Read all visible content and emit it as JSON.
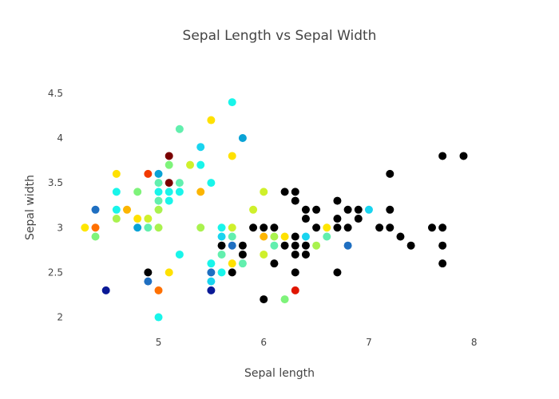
{
  "chart_data": {
    "type": "scatter",
    "title": "Sepal Length vs Sepal Width",
    "xlabel": "Sepal length",
    "ylabel": "Sepal width",
    "xlim": [
      4.1,
      8.2
    ],
    "ylim": [
      1.8,
      4.65
    ],
    "xticks": [
      "5",
      "6",
      "7",
      "8"
    ],
    "yticks": [
      "2",
      "2.5",
      "3",
      "3.5",
      "4",
      "4.5"
    ],
    "grid": false,
    "legend": "none",
    "points": [
      {
        "x": 4.3,
        "y": 3.0,
        "c": "#ffe600"
      },
      {
        "x": 4.4,
        "y": 3.2,
        "c": "#1f6fc1"
      },
      {
        "x": 4.4,
        "y": 3.0,
        "c": "#ff7000"
      },
      {
        "x": 4.4,
        "y": 2.9,
        "c": "#7ef37a"
      },
      {
        "x": 4.5,
        "y": 2.3,
        "c": "#0a1996"
      },
      {
        "x": 4.6,
        "y": 3.6,
        "c": "#ffe100"
      },
      {
        "x": 4.6,
        "y": 3.4,
        "c": "#19f5ea"
      },
      {
        "x": 4.6,
        "y": 3.2,
        "c": "#19f5ea"
      },
      {
        "x": 4.6,
        "y": 3.1,
        "c": "#a9f24e"
      },
      {
        "x": 4.7,
        "y": 3.2,
        "c": "#fcb500"
      },
      {
        "x": 4.8,
        "y": 3.4,
        "c": "#7ef37a"
      },
      {
        "x": 4.8,
        "y": 3.1,
        "c": "#ffe100"
      },
      {
        "x": 4.8,
        "y": 3.0,
        "c": "#0aa3d6"
      },
      {
        "x": 4.9,
        "y": 3.6,
        "c": "#f23a00"
      },
      {
        "x": 4.9,
        "y": 3.1,
        "c": "#cff02b"
      },
      {
        "x": 4.9,
        "y": 3.0,
        "c": "#62efae"
      },
      {
        "x": 4.9,
        "y": 2.5,
        "c": "#000000"
      },
      {
        "x": 4.9,
        "y": 2.4,
        "c": "#1f6fc1"
      },
      {
        "x": 5.0,
        "y": 3.6,
        "c": "#0aa3d6"
      },
      {
        "x": 5.0,
        "y": 3.5,
        "c": "#62efae"
      },
      {
        "x": 5.0,
        "y": 3.4,
        "c": "#19f5ea"
      },
      {
        "x": 5.0,
        "y": 3.3,
        "c": "#62efae"
      },
      {
        "x": 5.0,
        "y": 3.2,
        "c": "#a9f24e"
      },
      {
        "x": 5.0,
        "y": 3.0,
        "c": "#a9f24e"
      },
      {
        "x": 5.0,
        "y": 2.3,
        "c": "#ff7000"
      },
      {
        "x": 5.0,
        "y": 2.0,
        "c": "#19f5ea"
      },
      {
        "x": 5.1,
        "y": 3.8,
        "c": "#7a0000"
      },
      {
        "x": 5.1,
        "y": 3.7,
        "c": "#7ef37a"
      },
      {
        "x": 5.1,
        "y": 3.5,
        "c": "#7a0000"
      },
      {
        "x": 5.1,
        "y": 3.4,
        "c": "#19f5ea"
      },
      {
        "x": 5.1,
        "y": 3.3,
        "c": "#19f5ea"
      },
      {
        "x": 5.1,
        "y": 2.5,
        "c": "#ffe100"
      },
      {
        "x": 5.2,
        "y": 4.1,
        "c": "#62efae"
      },
      {
        "x": 5.2,
        "y": 3.5,
        "c": "#62efae"
      },
      {
        "x": 5.2,
        "y": 3.4,
        "c": "#19f5ea"
      },
      {
        "x": 5.2,
        "y": 2.7,
        "c": "#19f5ea"
      },
      {
        "x": 5.3,
        "y": 3.7,
        "c": "#cff02b"
      },
      {
        "x": 5.4,
        "y": 3.9,
        "c": "#19d4ef"
      },
      {
        "x": 5.4,
        "y": 3.7,
        "c": "#19f5ea"
      },
      {
        "x": 5.4,
        "y": 3.4,
        "c": "#fcb500"
      },
      {
        "x": 5.4,
        "y": 3.0,
        "c": "#a9f24e"
      },
      {
        "x": 5.5,
        "y": 4.2,
        "c": "#ffe100"
      },
      {
        "x": 5.5,
        "y": 3.5,
        "c": "#19f5ea"
      },
      {
        "x": 5.5,
        "y": 2.6,
        "c": "#19f5ea"
      },
      {
        "x": 5.5,
        "y": 2.5,
        "c": "#1f6fc1"
      },
      {
        "x": 5.5,
        "y": 2.4,
        "c": "#19d4ef"
      },
      {
        "x": 5.5,
        "y": 2.3,
        "c": "#0a1996"
      },
      {
        "x": 5.6,
        "y": 3.0,
        "c": "#19f5ea"
      },
      {
        "x": 5.6,
        "y": 2.9,
        "c": "#19d4ef"
      },
      {
        "x": 5.6,
        "y": 2.8,
        "c": "#000000"
      },
      {
        "x": 5.6,
        "y": 2.7,
        "c": "#62efae"
      },
      {
        "x": 5.6,
        "y": 2.5,
        "c": "#19f5ea"
      },
      {
        "x": 5.7,
        "y": 4.4,
        "c": "#19f5ea"
      },
      {
        "x": 5.7,
        "y": 3.8,
        "c": "#ffe100"
      },
      {
        "x": 5.7,
        "y": 3.0,
        "c": "#cff02b"
      },
      {
        "x": 5.7,
        "y": 2.9,
        "c": "#62efae"
      },
      {
        "x": 5.7,
        "y": 2.8,
        "c": "#1f6fc1"
      },
      {
        "x": 5.7,
        "y": 2.6,
        "c": "#ffe100"
      },
      {
        "x": 5.7,
        "y": 2.5,
        "c": "#000000"
      },
      {
        "x": 5.8,
        "y": 4.0,
        "c": "#0aa3d6"
      },
      {
        "x": 5.8,
        "y": 2.8,
        "c": "#000000"
      },
      {
        "x": 5.8,
        "y": 2.7,
        "c": "#000000"
      },
      {
        "x": 5.8,
        "y": 2.6,
        "c": "#62efae"
      },
      {
        "x": 5.9,
        "y": 3.2,
        "c": "#cff02b"
      },
      {
        "x": 5.9,
        "y": 3.0,
        "c": "#000000"
      },
      {
        "x": 6.0,
        "y": 3.4,
        "c": "#cff02b"
      },
      {
        "x": 6.0,
        "y": 3.0,
        "c": "#000000"
      },
      {
        "x": 6.0,
        "y": 2.9,
        "c": "#fcb500"
      },
      {
        "x": 6.0,
        "y": 2.7,
        "c": "#cff02b"
      },
      {
        "x": 6.0,
        "y": 2.2,
        "c": "#000000"
      },
      {
        "x": 6.1,
        "y": 3.0,
        "c": "#000000"
      },
      {
        "x": 6.1,
        "y": 2.9,
        "c": "#a9f24e"
      },
      {
        "x": 6.1,
        "y": 2.8,
        "c": "#62efae"
      },
      {
        "x": 6.1,
        "y": 2.6,
        "c": "#000000"
      },
      {
        "x": 6.2,
        "y": 3.4,
        "c": "#000000"
      },
      {
        "x": 6.2,
        "y": 2.9,
        "c": "#ffe100"
      },
      {
        "x": 6.2,
        "y": 2.8,
        "c": "#000000"
      },
      {
        "x": 6.2,
        "y": 2.2,
        "c": "#7ef37a"
      },
      {
        "x": 6.3,
        "y": 3.4,
        "c": "#000000"
      },
      {
        "x": 6.3,
        "y": 3.3,
        "c": "#000000"
      },
      {
        "x": 6.3,
        "y": 2.9,
        "c": "#000000"
      },
      {
        "x": 6.3,
        "y": 2.8,
        "c": "#000000"
      },
      {
        "x": 6.3,
        "y": 2.7,
        "c": "#000000"
      },
      {
        "x": 6.3,
        "y": 2.5,
        "c": "#000000"
      },
      {
        "x": 6.3,
        "y": 2.3,
        "c": "#e01500"
      },
      {
        "x": 6.4,
        "y": 3.2,
        "c": "#000000"
      },
      {
        "x": 6.4,
        "y": 3.1,
        "c": "#000000"
      },
      {
        "x": 6.4,
        "y": 2.9,
        "c": "#19d4ef"
      },
      {
        "x": 6.4,
        "y": 2.8,
        "c": "#000000"
      },
      {
        "x": 6.4,
        "y": 2.7,
        "c": "#000000"
      },
      {
        "x": 6.5,
        "y": 3.2,
        "c": "#000000"
      },
      {
        "x": 6.5,
        "y": 3.0,
        "c": "#000000"
      },
      {
        "x": 6.5,
        "y": 2.8,
        "c": "#a9f24e"
      },
      {
        "x": 6.6,
        "y": 3.0,
        "c": "#ffe600"
      },
      {
        "x": 6.6,
        "y": 2.9,
        "c": "#62efae"
      },
      {
        "x": 6.7,
        "y": 3.3,
        "c": "#000000"
      },
      {
        "x": 6.7,
        "y": 3.1,
        "c": "#000000"
      },
      {
        "x": 6.7,
        "y": 3.0,
        "c": "#000000"
      },
      {
        "x": 6.7,
        "y": 2.5,
        "c": "#000000"
      },
      {
        "x": 6.8,
        "y": 3.2,
        "c": "#000000"
      },
      {
        "x": 6.8,
        "y": 3.0,
        "c": "#000000"
      },
      {
        "x": 6.8,
        "y": 2.8,
        "c": "#1f6fc1"
      },
      {
        "x": 6.9,
        "y": 3.2,
        "c": "#000000"
      },
      {
        "x": 6.9,
        "y": 3.1,
        "c": "#000000"
      },
      {
        "x": 7.0,
        "y": 3.2,
        "c": "#19d4ef"
      },
      {
        "x": 7.1,
        "y": 3.0,
        "c": "#000000"
      },
      {
        "x": 7.2,
        "y": 3.6,
        "c": "#000000"
      },
      {
        "x": 7.2,
        "y": 3.2,
        "c": "#000000"
      },
      {
        "x": 7.2,
        "y": 3.0,
        "c": "#000000"
      },
      {
        "x": 7.3,
        "y": 2.9,
        "c": "#000000"
      },
      {
        "x": 7.4,
        "y": 2.8,
        "c": "#000000"
      },
      {
        "x": 7.6,
        "y": 3.0,
        "c": "#000000"
      },
      {
        "x": 7.7,
        "y": 3.8,
        "c": "#000000"
      },
      {
        "x": 7.7,
        "y": 3.0,
        "c": "#000000"
      },
      {
        "x": 7.7,
        "y": 2.8,
        "c": "#000000"
      },
      {
        "x": 7.7,
        "y": 2.6,
        "c": "#000000"
      },
      {
        "x": 7.9,
        "y": 3.8,
        "c": "#000000"
      }
    ]
  }
}
